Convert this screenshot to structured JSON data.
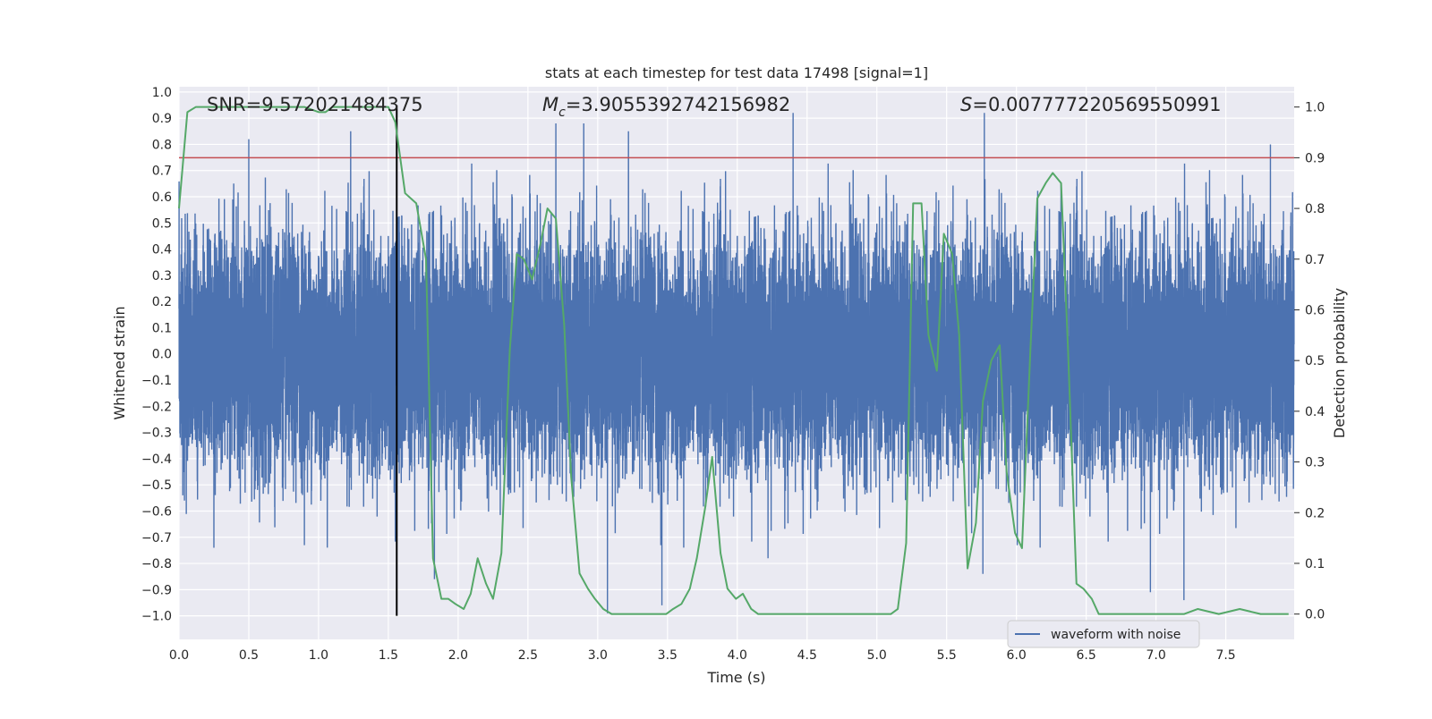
{
  "chart_data": {
    "type": "line",
    "title": "stats at each timestep for test data 17498 [signal=1]",
    "xlabel": "Time (s)",
    "ylabel": "Whitened strain",
    "y2label": "Detection probability",
    "xlim": [
      0.0,
      7.99
    ],
    "ylim": [
      -1.09,
      1.02
    ],
    "y2lim": [
      -0.05,
      1.04
    ],
    "x_ticks": [
      "0.0",
      "0.5",
      "1.0",
      "1.5",
      "2.0",
      "2.5",
      "3.0",
      "3.5",
      "4.0",
      "4.5",
      "5.0",
      "5.5",
      "6.0",
      "6.5",
      "7.0",
      "7.5"
    ],
    "y_ticks": [
      "1.0",
      "0.9",
      "0.8",
      "0.7",
      "0.6",
      "0.5",
      "0.4",
      "0.3",
      "0.2",
      "0.1",
      "0.0",
      "−0.1",
      "−0.2",
      "−0.3",
      "−0.4",
      "−0.5",
      "−0.6",
      "−0.7",
      "−0.8",
      "−0.9",
      "−1.0"
    ],
    "y2_ticks": [
      "1.0",
      "0.9",
      "0.8",
      "0.7",
      "0.6",
      "0.5",
      "0.4",
      "0.3",
      "0.2",
      "0.1",
      "0.0"
    ],
    "annotations": {
      "snr": "SNR=9.572021484375",
      "mc_symbol": "M",
      "mc_sub": "c",
      "mc_value": "=3.9055392742156982",
      "s_symbol": "S",
      "s_value": "=0.007777220569550991"
    },
    "legend": {
      "label": "waveform with noise",
      "placement": "lower-right"
    },
    "grid": true,
    "series": [
      {
        "name": "waveform with noise",
        "color": "#4c72b0",
        "axis": "left",
        "sample_rate": 2048,
        "rms": 0.22,
        "peaks": [
          {
            "t": 0.5,
            "v": 0.82
          },
          {
            "t": 1.23,
            "v": 0.85
          },
          {
            "t": 2.7,
            "v": 0.88
          },
          {
            "t": 2.9,
            "v": 0.88
          },
          {
            "t": 3.22,
            "v": 0.85
          },
          {
            "t": 4.4,
            "v": 0.92
          },
          {
            "t": 5.77,
            "v": 0.92
          },
          {
            "t": 7.82,
            "v": 0.8
          },
          {
            "t": 0.25,
            "v": -0.74
          },
          {
            "t": 3.07,
            "v": -0.99
          },
          {
            "t": 3.46,
            "v": -0.96
          },
          {
            "t": 4.22,
            "v": -0.78
          },
          {
            "t": 5.76,
            "v": -0.84
          },
          {
            "t": 6.96,
            "v": -0.91
          },
          {
            "t": 7.2,
            "v": -0.94
          },
          {
            "t": 1.83,
            "v": -0.86
          }
        ]
      },
      {
        "name": "",
        "color": "#55a868",
        "axis": "right",
        "x": [
          0.0,
          0.06,
          0.12,
          0.3,
          0.6,
          0.9,
          1.0,
          1.05,
          1.1,
          1.2,
          1.3,
          1.4,
          1.5,
          1.55,
          1.62,
          1.7,
          1.77,
          1.82,
          1.88,
          1.93,
          1.98,
          2.04,
          2.09,
          2.14,
          2.2,
          2.25,
          2.31,
          2.37,
          2.42,
          2.47,
          2.53,
          2.59,
          2.64,
          2.7,
          2.76,
          2.81,
          2.87,
          2.93,
          2.98,
          3.04,
          3.1,
          3.15,
          3.21,
          3.27,
          3.32,
          3.38,
          3.44,
          3.49,
          3.54,
          3.6,
          3.66,
          3.71,
          3.77,
          3.82,
          3.88,
          3.93,
          3.99,
          4.04,
          4.1,
          4.15,
          4.21,
          4.27,
          4.33,
          4.38,
          4.44,
          4.6,
          4.8,
          5.0,
          5.1,
          5.15,
          5.21,
          5.26,
          5.32,
          5.37,
          5.43,
          5.48,
          5.54,
          5.59,
          5.65,
          5.71,
          5.76,
          5.82,
          5.88,
          5.93,
          5.99,
          6.04,
          6.1,
          6.15,
          6.21,
          6.26,
          6.32,
          6.37,
          6.43,
          6.48,
          6.54,
          6.59,
          6.65,
          6.7,
          6.76,
          6.81,
          6.87,
          6.93,
          6.98,
          7.04,
          7.1,
          7.2,
          7.3,
          7.45,
          7.6,
          7.75,
          7.9,
          7.95
        ],
        "y": [
          0.8,
          0.99,
          1.0,
          1.0,
          1.0,
          1.0,
          0.99,
          0.99,
          1.0,
          1.0,
          1.0,
          1.0,
          1.0,
          0.97,
          0.83,
          0.81,
          0.7,
          0.11,
          0.03,
          0.03,
          0.02,
          0.01,
          0.04,
          0.11,
          0.06,
          0.03,
          0.12,
          0.52,
          0.71,
          0.7,
          0.66,
          0.73,
          0.8,
          0.78,
          0.57,
          0.27,
          0.08,
          0.05,
          0.03,
          0.01,
          0.0,
          0.0,
          0.0,
          0.0,
          0.0,
          0.0,
          0.0,
          0.0,
          0.01,
          0.02,
          0.05,
          0.11,
          0.21,
          0.31,
          0.12,
          0.05,
          0.03,
          0.04,
          0.01,
          0.0,
          0.0,
          0.0,
          0.0,
          0.0,
          0.0,
          0.0,
          0.0,
          0.0,
          0.0,
          0.01,
          0.14,
          0.81,
          0.81,
          0.55,
          0.48,
          0.75,
          0.71,
          0.55,
          0.09,
          0.18,
          0.42,
          0.5,
          0.53,
          0.28,
          0.16,
          0.13,
          0.52,
          0.82,
          0.85,
          0.87,
          0.85,
          0.52,
          0.06,
          0.05,
          0.03,
          0.0,
          0.0,
          0.0,
          0.0,
          0.0,
          0.0,
          0.0,
          0.0,
          0.0,
          0.0,
          0.0,
          0.01,
          0.0,
          0.01,
          0.0,
          0.0,
          0.0
        ]
      }
    ],
    "threshold": {
      "value": 0.9,
      "color": "#c44e52",
      "axis": "right"
    },
    "marker_line": {
      "x": 1.56,
      "color": "#000000"
    }
  }
}
